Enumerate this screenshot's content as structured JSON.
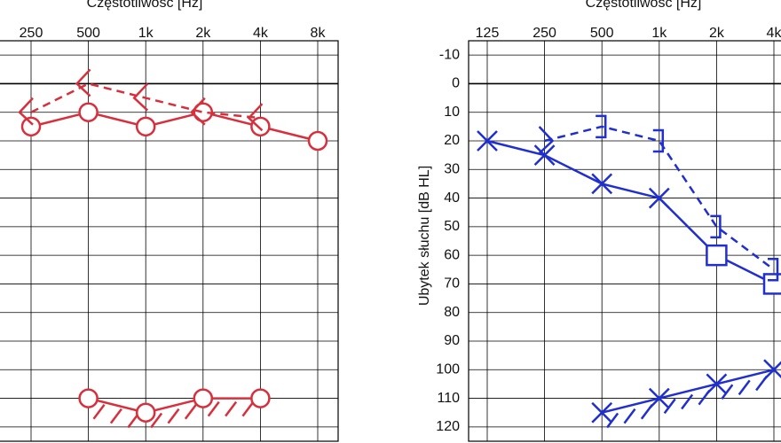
{
  "chart_data": [
    {
      "type": "line",
      "title": "Częstotliwość  [Hz]",
      "categories": [
        "250",
        "500",
        "1k",
        "2k",
        "4k",
        "8k"
      ],
      "ylim": [
        -15,
        125
      ],
      "yticks": [
        -10,
        0,
        10,
        20,
        30,
        40,
        50,
        60,
        70,
        80,
        90,
        100,
        110,
        120
      ],
      "ytick_labels": false,
      "grid": true,
      "zero_line": 0,
      "series": [
        {
          "color": "#d7303c",
          "dash": "solid",
          "marker": "circle",
          "values": [
            15,
            10,
            15,
            10,
            15,
            20
          ]
        },
        {
          "color": "#d7303c",
          "dash": "dashed",
          "marker": "lt",
          "values": [
            10,
            0,
            5,
            10,
            12,
            null
          ]
        },
        {
          "color": "#d7303c",
          "dash": "solid",
          "marker": "circle",
          "hatch": true,
          "values": [
            null,
            110,
            115,
            110,
            110,
            null
          ]
        }
      ]
    },
    {
      "type": "line",
      "title": "Częstotliwość  [Hz]",
      "y_label": "Ubytek słuchu  [dB HL]",
      "categories": [
        "125",
        "250",
        "500",
        "1k",
        "2k",
        "4k"
      ],
      "ylim": [
        -15,
        125
      ],
      "yticks": [
        -10,
        0,
        10,
        20,
        30,
        40,
        50,
        60,
        70,
        80,
        90,
        100,
        110,
        120
      ],
      "ytick_labels": true,
      "grid": true,
      "zero_line": 0,
      "series": [
        {
          "color": "#1f2fd0",
          "dash": "solid",
          "marker": [
            "x",
            "x",
            "x",
            "x",
            "square",
            "square"
          ],
          "values": [
            20,
            25,
            35,
            40,
            60,
            70
          ]
        },
        {
          "color": "#1f2fd0",
          "dash": "dashed",
          "marker": [
            null,
            "gt",
            "bracket",
            "bracket",
            "bracket",
            "bracket"
          ],
          "values": [
            null,
            20,
            15,
            20,
            50,
            65
          ]
        },
        {
          "color": "#1f2fd0",
          "dash": "solid",
          "marker": "x",
          "hatch": true,
          "values": [
            null,
            null,
            115,
            110,
            105,
            100
          ]
        }
      ]
    }
  ]
}
